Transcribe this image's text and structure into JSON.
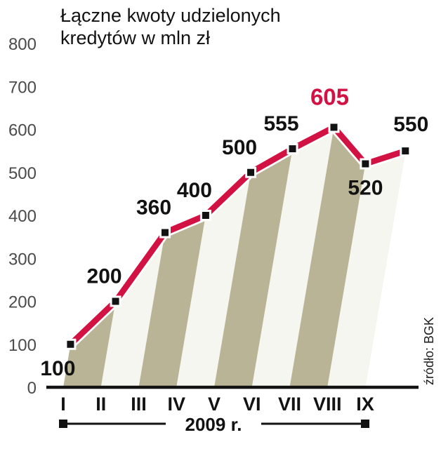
{
  "title": {
    "line1": "Łączne kwoty udzielonych",
    "line2": "kredytów w mln zł"
  },
  "source_label": "źródło: BGK",
  "chart_data": {
    "type": "line",
    "title": "Łączne kwoty udzielonych kredytów w mln zł",
    "categories": [
      "I",
      "II",
      "III",
      "IV",
      "V",
      "VI",
      "VII",
      "VIII",
      "IX"
    ],
    "values": [
      100,
      200,
      360,
      400,
      500,
      555,
      605,
      520,
      550
    ],
    "value_labels": [
      "100",
      "200",
      "360",
      "400",
      "500",
      "555",
      "605",
      "520",
      "550"
    ],
    "highlight_index": 6,
    "labels_below_indices": [
      0,
      7
    ],
    "x_period_label": "2009 r.",
    "ylim": [
      0,
      800
    ],
    "yticks": [
      0,
      100,
      200,
      300,
      400,
      500,
      600,
      700,
      800
    ],
    "grid": false,
    "legend": "none",
    "source": "źródło: BGK",
    "colors": {
      "line": "#d11243",
      "line_outline": "#ffffff",
      "marker": "#121212",
      "value_label": "#121212",
      "value_label_highlight": "#d11243",
      "ytick_label": "#4b4b4b",
      "axis": "#121212",
      "stripe_dark": "#b9b496",
      "stripe_light": "#f6f6f0"
    }
  }
}
